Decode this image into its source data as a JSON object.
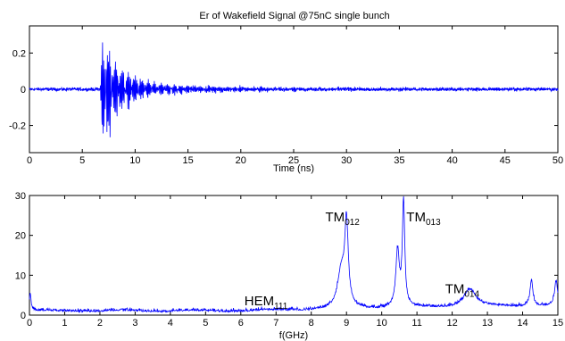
{
  "chart_data": [
    {
      "type": "line",
      "title": "Er of Wakefield Signal @75nC single bunch",
      "xlabel": "Time (ns)",
      "ylabel": "",
      "xlim": [
        0,
        50
      ],
      "ylim": [
        -0.35,
        0.35
      ],
      "xticks": [
        "0",
        "5",
        "10",
        "15",
        "20",
        "25",
        "30",
        "35",
        "40",
        "45",
        "50"
      ],
      "yticks": [
        "-0.2",
        "0",
        "0.2"
      ],
      "series_color": "#0000ff",
      "features": {
        "baseline_noise": 0.008,
        "burst_onset_ns": 6.7,
        "peak_positive": 0.32,
        "peak_negative": -0.33,
        "peak_time_ns": 7.1,
        "decay_to_noise_ns": 15
      }
    },
    {
      "type": "line",
      "title": "",
      "xlabel": "f(GHz)",
      "ylabel": "",
      "xlim": [
        0,
        15
      ],
      "ylim": [
        0,
        30
      ],
      "xticks": [
        "0",
        "1",
        "2",
        "3",
        "4",
        "5",
        "6",
        "7",
        "8",
        "9",
        "10",
        "11",
        "12",
        "13",
        "14",
        "15"
      ],
      "yticks": [
        "0",
        "10",
        "20",
        "30"
      ],
      "series_color": "#0000ff",
      "peaks": [
        {
          "f": 0.02,
          "amp": 4.2
        },
        {
          "f": 8.85,
          "amp": 9
        },
        {
          "f": 9.0,
          "amp": 20.5
        },
        {
          "f": 10.45,
          "amp": 14
        },
        {
          "f": 10.62,
          "amp": 26.5
        },
        {
          "f": 12.5,
          "amp": 4.5
        },
        {
          "f": 14.25,
          "amp": 6.5
        },
        {
          "f": 14.95,
          "amp": 6
        }
      ],
      "annotations": [
        {
          "base": "HEM",
          "sub": "111",
          "f": 6.1,
          "y": 2.5
        },
        {
          "base": "TM",
          "sub": "012",
          "f": 8.4,
          "y": 23.5
        },
        {
          "base": "TM",
          "sub": "013",
          "f": 10.7,
          "y": 23.5
        },
        {
          "base": "TM",
          "sub": "014",
          "f": 11.8,
          "y": 5.5
        }
      ]
    }
  ]
}
